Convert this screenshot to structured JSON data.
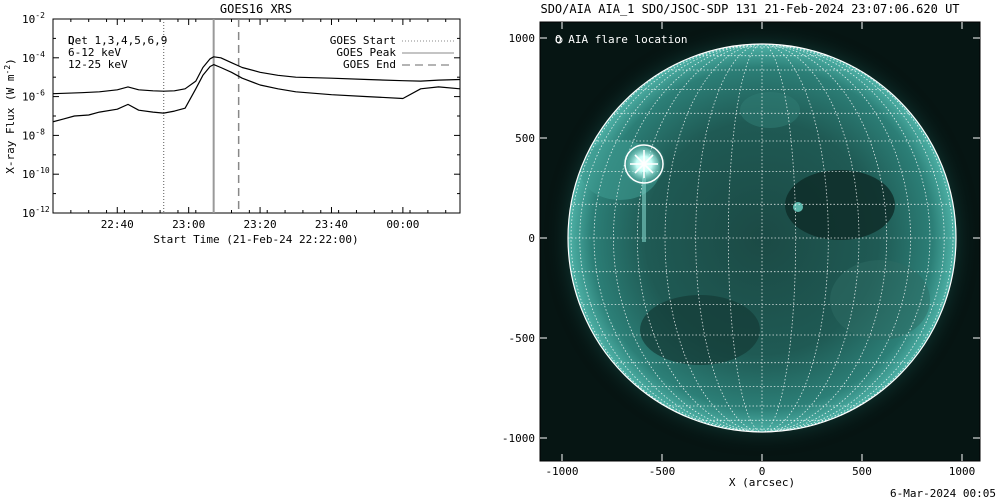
{
  "chart_data": [
    {
      "type": "line",
      "title": "GOES16 XRS",
      "xlabel": "Start Time (21-Feb-24 22:22:00)",
      "ylabel": "X-ray Flux (W m",
      "ylabel_sup": "-2",
      "ylabel_close": ")",
      "xlim": [
        "22:22",
        "00:16"
      ],
      "ylim_log10": [
        -12,
        -2
      ],
      "x_ticks": [
        "22:40",
        "23:00",
        "23:20",
        "23:40",
        "00:00"
      ],
      "y_ticks": [
        {
          "base": "10",
          "exp": "-2"
        },
        {
          "base": "10",
          "exp": "-4"
        },
        {
          "base": "10",
          "exp": "-6"
        },
        {
          "base": "10",
          "exp": "-8"
        },
        {
          "base": "10",
          "exp": "-10"
        },
        {
          "base": "10",
          "exp": "-12"
        }
      ],
      "legend_left": [
        {
          "label": "Det 1,3,4,5,6,9",
          "overlay": "Q",
          "color": "#000000"
        },
        {
          "label": "6-12 keV",
          "color": "#cc00cc"
        },
        {
          "label": "12-25 keV",
          "color": "#00cc00"
        }
      ],
      "legend_right": [
        {
          "label": "GOES Start",
          "style": "dotted"
        },
        {
          "label": "GOES Peak",
          "style": "solid"
        },
        {
          "label": "GOES End",
          "style": "dashed"
        }
      ],
      "event_lines": {
        "start": "22:53",
        "peak": "23:07",
        "end": "23:14"
      },
      "series": [
        {
          "name": "",
          "color": "#000000",
          "x": [
            "22:22",
            "22:30",
            "22:35",
            "22:40",
            "22:43",
            "22:46",
            "22:50",
            "22:53",
            "22:56",
            "22:59",
            "23:02",
            "23:04",
            "23:06",
            "23:07",
            "23:09",
            "23:12",
            "23:15",
            "23:20",
            "23:25",
            "23:30",
            "23:40",
            "23:50",
            "00:00",
            "00:05",
            "00:10",
            "00:16"
          ],
          "log10_y": [
            -5.85,
            -5.8,
            -5.75,
            -5.65,
            -5.5,
            -5.65,
            -5.7,
            -5.72,
            -5.7,
            -5.6,
            -5.2,
            -4.5,
            -4.05,
            -3.95,
            -4.0,
            -4.25,
            -4.5,
            -4.75,
            -4.9,
            -5.0,
            -5.05,
            -5.12,
            -5.18,
            -5.2,
            -5.15,
            -5.12
          ]
        },
        {
          "name": "",
          "color": "#000000",
          "x": [
            "22:22",
            "22:25",
            "22:28",
            "22:32",
            "22:35",
            "22:40",
            "22:43",
            "22:46",
            "22:50",
            "22:53",
            "22:56",
            "22:59",
            "23:02",
            "23:04",
            "23:06",
            "23:07",
            "23:09",
            "23:12",
            "23:15",
            "23:20",
            "23:25",
            "23:30",
            "23:40",
            "23:50",
            "00:00",
            "00:05",
            "00:10",
            "00:16"
          ],
          "log10_y": [
            -7.3,
            -7.15,
            -7.0,
            -6.95,
            -6.8,
            -6.65,
            -6.4,
            -6.7,
            -6.8,
            -6.85,
            -6.75,
            -6.6,
            -5.6,
            -4.9,
            -4.45,
            -4.35,
            -4.5,
            -4.75,
            -5.05,
            -5.4,
            -5.6,
            -5.75,
            -5.9,
            -6.0,
            -6.1,
            -5.6,
            -5.5,
            -5.6
          ]
        }
      ]
    },
    {
      "type": "heatmap",
      "title": "SDO/AIA AIA_1 SDO/JSOC-SDP 131 21-Feb-2024 23:07:06.620 UT",
      "xlabel": "X (arcsec)",
      "ylabel": "",
      "xlim": [
        -1100,
        1100
      ],
      "ylim": [
        -1100,
        1100
      ],
      "x_ticks": [
        "-1000",
        "-500",
        "0",
        "500",
        "1000"
      ],
      "y_ticks": [
        "1000",
        "500",
        "0",
        "-500",
        "-1000"
      ],
      "legend": "O AIA flare location",
      "flare_location": [
        -590,
        370
      ],
      "solar_radius": 970,
      "colors": {
        "disk": "#2a7d76",
        "dark": "#0d2b28",
        "grid": "#ffffff"
      },
      "footer": "6-Mar-2024 00:05"
    }
  ]
}
